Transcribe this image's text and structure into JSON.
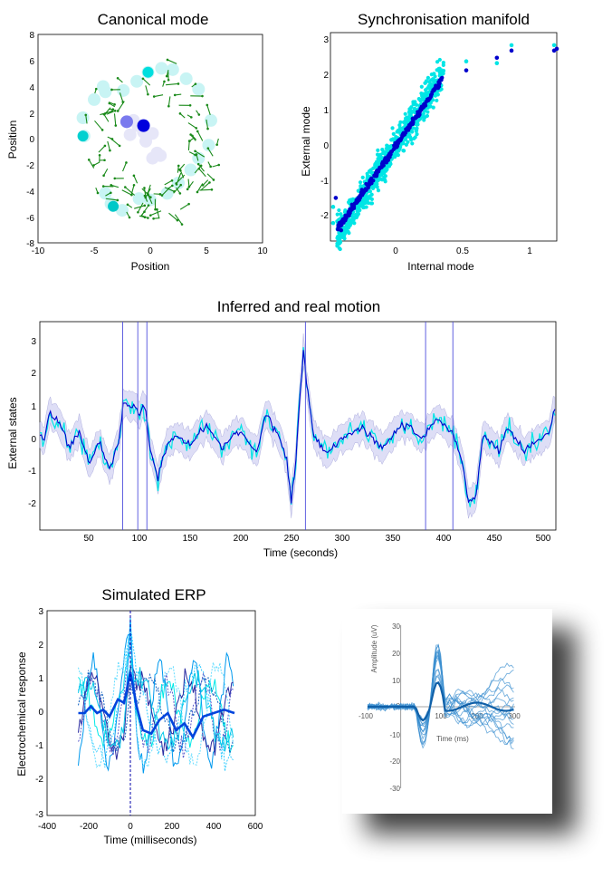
{
  "panels": {
    "canonical": {
      "title": "Canonical mode",
      "xlabel": "Position",
      "ylabel": "Position",
      "x_ticks": [
        "-10",
        "-5",
        "0",
        "5",
        "10"
      ],
      "y_ticks": [
        "8",
        "6",
        "4",
        "2",
        "0",
        "-2",
        "-4",
        "-6",
        "-8"
      ]
    },
    "manifold": {
      "title": "Synchronisation manifold",
      "xlabel": "Internal mode",
      "ylabel": "External mode",
      "x_ticks": [
        "0",
        "0.5",
        "1"
      ],
      "y_ticks": [
        "3",
        "2",
        "1",
        "0",
        "-1",
        "-2"
      ]
    },
    "motion": {
      "title": "Inferred and real motion",
      "xlabel": "Time (seconds)",
      "ylabel": "External states",
      "x_ticks": [
        "50",
        "100",
        "150",
        "200",
        "250",
        "300",
        "350",
        "400",
        "450",
        "500"
      ],
      "y_ticks": [
        "3",
        "2",
        "1",
        "0",
        "-1",
        "-2"
      ]
    },
    "erp": {
      "title": "Simulated ERP",
      "xlabel": "Time (milliseconds)",
      "ylabel": "Electrochemical response",
      "x_ticks": [
        "-400",
        "-200",
        "0",
        "200",
        "400",
        "600"
      ],
      "y_ticks": [
        "3",
        "2",
        "1",
        "0",
        "-1",
        "-2",
        "-3"
      ]
    },
    "inset": {
      "ylabel": "Amplitude (uV)",
      "xlabel": "Time (ms)",
      "y_ticks": [
        "30",
        "20",
        "10",
        "0",
        "-10",
        "-20",
        "-30"
      ],
      "x_ticks": [
        "-100",
        "100",
        "200",
        "300"
      ]
    }
  },
  "colors": {
    "cyan": "#00e5e5",
    "blue": "#0000cc",
    "lavender": "#c8c8f0",
    "arrow": "#1a8a1a",
    "inset_line": "#3a8fd0"
  },
  "chart_data": [
    {
      "type": "scatter",
      "title": "Canonical mode",
      "xlabel": "Position",
      "ylabel": "Position",
      "xlim": [
        -10,
        10
      ],
      "ylim": [
        -8,
        8
      ],
      "ring_points": [
        [
          -6,
          1.6
        ],
        [
          -5.9,
          0.2
        ],
        [
          -5,
          3
        ],
        [
          -4.2,
          4
        ],
        [
          -3.5,
          -5
        ],
        [
          -4,
          -4.2
        ],
        [
          -2.5,
          -5.5
        ],
        [
          -1,
          -4.6
        ],
        [
          0,
          -4.7
        ],
        [
          1.5,
          -4.2
        ],
        [
          2.5,
          -3.4
        ],
        [
          3.6,
          -2.4
        ],
        [
          4.3,
          -1.5
        ],
        [
          5.2,
          -0.5
        ],
        [
          5.4,
          1.4
        ],
        [
          4.3,
          3.8
        ],
        [
          3.2,
          4.6
        ],
        [
          2,
          5.3
        ],
        [
          1,
          5.4
        ],
        [
          -0.2,
          5.1
        ],
        [
          -1.2,
          4.4
        ],
        [
          -2.4,
          3.7
        ],
        [
          -4,
          3.6
        ]
      ],
      "center_points": [
        [
          -2.1,
          1.3
        ],
        [
          -1.5,
          1.4
        ],
        [
          -1.1,
          1
        ],
        [
          -0.6,
          0.5
        ],
        [
          -0.4,
          -0.2
        ],
        [
          -1.8,
          0.3
        ],
        [
          0.2,
          0.4
        ],
        [
          0.6,
          -1.1
        ],
        [
          0.9,
          -1.3
        ],
        [
          0.2,
          -1.5
        ]
      ],
      "highlight_points": [
        [
          -0.2,
          5.1
        ],
        [
          -6,
          0.2
        ],
        [
          -3.3,
          -5.2
        ],
        [
          -0.6,
          1.0
        ],
        [
          -2.1,
          1.3
        ]
      ]
    },
    {
      "type": "scatter",
      "title": "Synchronisation manifold",
      "xlabel": "Internal mode",
      "ylabel": "External mode",
      "xlim": [
        -0.5,
        1.2
      ],
      "ylim": [
        -2.7,
        3.1
      ],
      "series": [
        {
          "color": "cyan",
          "fit": {
            "slope": 5.6,
            "intercept": 0,
            "spread": 0.45,
            "xmin": -0.45,
            "xmax": 0.35,
            "n": 800
          }
        },
        {
          "color": "blue",
          "fit": {
            "slope": 5.3,
            "intercept": 0,
            "spread": 0.08,
            "xmin": -0.45,
            "xmax": 0.35,
            "n": 300
          }
        }
      ],
      "extra_points": [
        [
          0.52,
          2.05
        ],
        [
          0.52,
          2.3
        ],
        [
          0.75,
          2.4
        ],
        [
          0.75,
          2.25
        ],
        [
          0.86,
          2.6
        ],
        [
          0.86,
          2.75
        ],
        [
          1.18,
          2.6
        ],
        [
          1.18,
          2.75
        ],
        [
          1.2,
          2.65
        ],
        [
          -0.48,
          -1.75
        ],
        [
          -0.46,
          -1.5
        ],
        [
          -0.48,
          -2.2
        ],
        [
          -0.42,
          -2.4
        ]
      ]
    },
    {
      "type": "line",
      "title": "Inferred and real motion",
      "xlabel": "Time (seconds)",
      "ylabel": "External states",
      "xlim": [
        1,
        512
      ],
      "ylim": [
        -2.7,
        3.6
      ],
      "events": [
        83,
        98,
        107,
        264,
        383,
        410
      ],
      "key_points": [
        [
          1,
          0.1
        ],
        [
          5,
          0
        ],
        [
          10,
          0.8
        ],
        [
          20,
          0.6
        ],
        [
          30,
          -0.2
        ],
        [
          40,
          0.3
        ],
        [
          50,
          -0.7
        ],
        [
          60,
          0
        ],
        [
          70,
          -0.9
        ],
        [
          80,
          0.1
        ],
        [
          84,
          1.2
        ],
        [
          90,
          1
        ],
        [
          95,
          1.1
        ],
        [
          100,
          0.8
        ],
        [
          105,
          1.1
        ],
        [
          110,
          -0.2
        ],
        [
          118,
          -1.1
        ],
        [
          125,
          -0.3
        ],
        [
          135,
          0.2
        ],
        [
          150,
          -0.1
        ],
        [
          165,
          0.5
        ],
        [
          180,
          -0.2
        ],
        [
          200,
          0.3
        ],
        [
          215,
          -0.4
        ],
        [
          225,
          0.8
        ],
        [
          235,
          0.3
        ],
        [
          245,
          -0.5
        ],
        [
          250,
          -1.8
        ],
        [
          255,
          -0.4
        ],
        [
          259,
          1.5
        ],
        [
          262,
          2.7
        ],
        [
          266,
          1.6
        ],
        [
          272,
          0.2
        ],
        [
          285,
          -0.4
        ],
        [
          300,
          0.1
        ],
        [
          320,
          0.4
        ],
        [
          340,
          -0.2
        ],
        [
          360,
          0.5
        ],
        [
          380,
          0.1
        ],
        [
          395,
          0.7
        ],
        [
          410,
          0.2
        ],
        [
          420,
          -0.7
        ],
        [
          425,
          -1.8
        ],
        [
          432,
          -1.8
        ],
        [
          440,
          0.2
        ],
        [
          455,
          -0.3
        ],
        [
          465,
          0.4
        ],
        [
          480,
          -0.3
        ],
        [
          495,
          0
        ],
        [
          505,
          0.2
        ],
        [
          512,
          1.2
        ]
      ]
    },
    {
      "type": "line",
      "title": "Simulated ERP",
      "xlabel": "Time (milliseconds)",
      "ylabel": "Electrochemical response",
      "xlim": [
        -400,
        600
      ],
      "ylim": [
        -3,
        3
      ],
      "mean_series": [
        [
          -250,
          0
        ],
        [
          -220,
          0
        ],
        [
          -190,
          0.2
        ],
        [
          -160,
          0
        ],
        [
          -130,
          0.1
        ],
        [
          -100,
          -0.1
        ],
        [
          -60,
          0.4
        ],
        [
          -30,
          0.3
        ],
        [
          0,
          1.2
        ],
        [
          30,
          0.2
        ],
        [
          60,
          -0.5
        ],
        [
          100,
          -0.6
        ],
        [
          140,
          -0.2
        ],
        [
          180,
          0
        ],
        [
          220,
          -0.5
        ],
        [
          260,
          -0.3
        ],
        [
          300,
          -0.7
        ],
        [
          350,
          -0.1
        ],
        [
          400,
          0
        ],
        [
          450,
          0.1
        ],
        [
          500,
          0
        ]
      ],
      "peak": {
        "x": 0,
        "y": 2.8
      }
    },
    {
      "type": "line",
      "title": "",
      "xlabel": "Time (ms)",
      "ylabel": "Amplitude (uV)",
      "xlim": [
        -100,
        300
      ],
      "ylim": [
        -30,
        30
      ],
      "peak": {
        "x": 80,
        "y": 27
      }
    }
  ]
}
